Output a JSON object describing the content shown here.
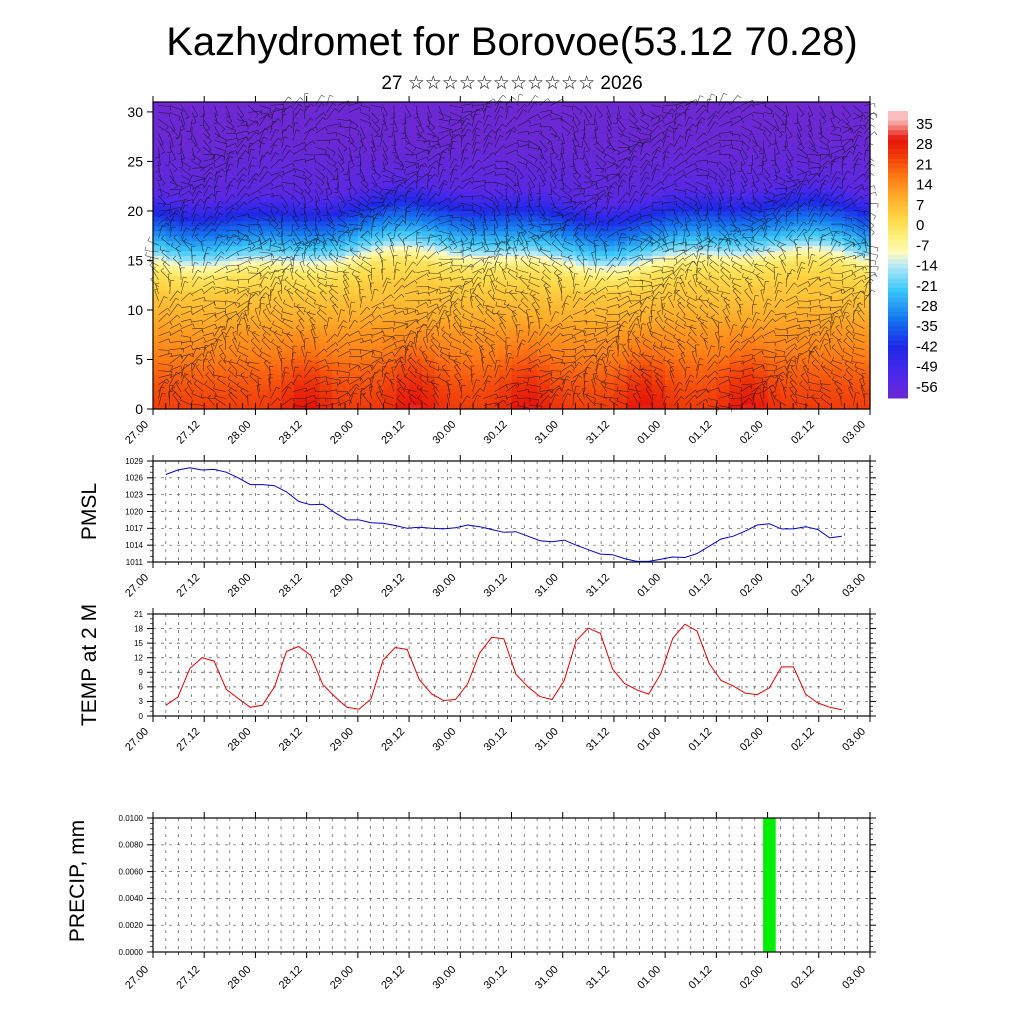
{
  "header": {
    "title": "Kazhydromet for Borovoe(53.12 70.28)",
    "subtitle": "27 ☆☆☆☆☆☆☆☆☆☆☆ 2026"
  },
  "colors": {
    "pmsl_line": "#0000cc",
    "temp_line": "#dd0000",
    "precip_bar": "#00ee00",
    "axis": "#000000",
    "grid": "#555555"
  },
  "chart_data": [
    {
      "id": "cross-section",
      "type": "heatmap",
      "title": "",
      "xlabel": "",
      "ylabel": "",
      "ylim": [
        0,
        31
      ],
      "y_ticks": [
        0,
        5,
        10,
        15,
        20,
        25,
        30
      ],
      "x_tick_labels": [
        "27.00",
        "27.12",
        "28.00",
        "28.12",
        "29.00",
        "29.12",
        "30.00",
        "30.12",
        "31.00",
        "31.12",
        "01.00",
        "01.12",
        "02.00",
        "02.12",
        "03.00"
      ],
      "colorbar_labels": [
        "35",
        "28",
        "21",
        "14",
        "7",
        "0",
        "-7",
        "-14",
        "-21",
        "-28",
        "-35",
        "-42",
        "-49",
        "-56"
      ],
      "profile": {
        "levels": [
          0,
          2,
          4,
          6,
          8,
          10,
          12,
          14,
          15,
          16,
          18,
          20,
          21,
          22,
          24,
          27,
          31
        ],
        "values": [
          22,
          20,
          17,
          13,
          10,
          6,
          2,
          -3,
          -10,
          -20,
          -33,
          -45,
          -52,
          -58,
          -60,
          -62,
          -63
        ]
      },
      "warm_cores_x": [
        3,
        5.1,
        7.3,
        9.6,
        11.6
      ],
      "overlay": "wind barbs"
    },
    {
      "id": "pmsl",
      "type": "line",
      "ylabel": "PMSL",
      "ylim": [
        1011,
        1029
      ],
      "y_ticks": [
        1011,
        1014,
        1017,
        1020,
        1023,
        1026,
        1029
      ],
      "x_tick_labels": [
        "27.00",
        "27.12",
        "28.00",
        "28.12",
        "29.00",
        "29.12",
        "30.00",
        "30.12",
        "31.00",
        "31.12",
        "01.00",
        "01.12",
        "02.00",
        "02.12",
        "03.00"
      ],
      "series": [
        {
          "name": "PMSL",
          "values": [
            1026.6,
            1027.4,
            1027.8,
            1027.4,
            1027.5,
            1027.0,
            1026.0,
            1024.8,
            1024.8,
            1024.6,
            1023.5,
            1021.8,
            1021.2,
            1021.3,
            1019.8,
            1018.5,
            1018.5,
            1018.0,
            1017.9,
            1017.5,
            1017.0,
            1017.2,
            1017.0,
            1016.9,
            1017.1,
            1017.6,
            1017.3,
            1016.8,
            1016.3,
            1016.4,
            1015.6,
            1014.8,
            1014.6,
            1014.9,
            1014.0,
            1013.2,
            1012.4,
            1012.3,
            1011.6,
            1011.1,
            1011.1,
            1011.5,
            1011.9,
            1011.8,
            1012.5,
            1013.8,
            1015.1,
            1015.6,
            1016.5,
            1017.6,
            1017.8,
            1016.9,
            1016.9,
            1017.3,
            1016.8,
            1015.3,
            1015.6
          ]
        }
      ]
    },
    {
      "id": "temp",
      "type": "line",
      "ylabel": "TEMP at 2 M",
      "ylim": [
        0,
        21
      ],
      "y_ticks": [
        0,
        3,
        6,
        9,
        12,
        15,
        18,
        21
      ],
      "x_tick_labels": [
        "27.00",
        "27.12",
        "28.00",
        "28.12",
        "29.00",
        "29.12",
        "30.00",
        "30.12",
        "31.00",
        "31.12",
        "01.00",
        "01.12",
        "02.00",
        "02.12",
        "03.00"
      ],
      "series": [
        {
          "name": "TEMP at 2 M",
          "values": [
            2.2,
            3.9,
            9.8,
            12.0,
            11.3,
            5.5,
            3.6,
            1.8,
            2.2,
            6.0,
            13.3,
            14.3,
            12.5,
            6.5,
            4.0,
            1.8,
            1.4,
            3.5,
            11.5,
            14.1,
            13.7,
            7.5,
            4.6,
            3.2,
            3.4,
            6.6,
            13.0,
            16.2,
            15.9,
            8.6,
            6.0,
            4.0,
            3.4,
            7.3,
            15.5,
            18.1,
            17.0,
            9.7,
            6.7,
            5.4,
            4.5,
            8.7,
            16.0,
            18.9,
            17.5,
            10.9,
            7.3,
            6.2,
            4.7,
            4.4,
            5.8,
            10.1,
            10.1,
            4.5,
            2.7,
            1.8,
            1.3
          ]
        }
      ]
    },
    {
      "id": "precip",
      "type": "bar",
      "ylabel": "PRECIP, mm",
      "ylim": [
        0,
        0.01
      ],
      "y_tick_labels": [
        "0.0000",
        "0.0020",
        "0.0040",
        "0.0060",
        "0.0080",
        "0.0100"
      ],
      "x_tick_labels": [
        "27.00",
        "27.12",
        "28.00",
        "28.12",
        "29.00",
        "29.12",
        "30.00",
        "30.12",
        "31.00",
        "31.12",
        "01.00",
        "01.12",
        "02.00",
        "02.12",
        "03.00"
      ],
      "bars": [
        {
          "x": 50,
          "value": 0.01
        }
      ]
    }
  ]
}
